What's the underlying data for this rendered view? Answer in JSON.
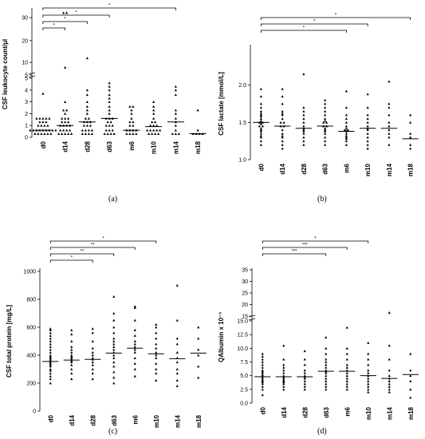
{
  "panels": [
    {
      "id": "a",
      "label": "(a)",
      "chart_data": {
        "type": "scatter",
        "ylabel": "CSF leukocyte count/µl",
        "categories": [
          "d0",
          "d14",
          "d28",
          "d63",
          "m6",
          "m10",
          "m14",
          "m18"
        ],
        "axis": "broken",
        "y_lower_ticks": [
          "0",
          "1",
          "2",
          "3",
          "4",
          "5"
        ],
        "y_upper_ticks": [
          "5",
          "10",
          "20",
          "30"
        ],
        "values": [
          [
            0.3,
            0.3,
            0.3,
            0.3,
            0.3,
            0.3,
            0.6,
            0.6,
            0.6,
            0.6,
            0.6,
            0.6,
            0.6,
            0.6,
            0.6,
            1.0,
            1.0,
            1.0,
            1.0,
            1.3,
            1.3,
            1.3,
            1.6,
            1.6,
            1.6,
            1.6,
            1.6,
            3.7
          ],
          [
            0.3,
            0.3,
            0.3,
            0.3,
            0.3,
            0.6,
            0.6,
            0.6,
            0.6,
            1.0,
            1.0,
            1.0,
            1.0,
            1.3,
            1.3,
            1.3,
            1.6,
            1.6,
            1.6,
            2.0,
            2.3,
            2.3,
            3.0,
            8,
            33,
            36
          ],
          [
            0.3,
            0.3,
            0.3,
            0.3,
            0.6,
            0.6,
            0.6,
            0.6,
            1.0,
            1.0,
            1.0,
            1.3,
            1.3,
            1.3,
            1.6,
            1.6,
            2.0,
            2.3,
            2.6,
            3.0,
            3.6,
            4.0,
            12
          ],
          [
            0.3,
            0.3,
            0.3,
            0.3,
            0.6,
            0.6,
            0.6,
            1.0,
            1.0,
            1.0,
            1.3,
            1.3,
            1.6,
            1.6,
            1.6,
            2.0,
            2.3,
            2.6,
            3.0,
            3.3,
            3.6,
            4.0,
            4.3,
            4.6
          ],
          [
            0.3,
            0.3,
            0.3,
            0.3,
            0.6,
            0.6,
            0.6,
            0.6,
            1.0,
            1.0,
            1.3,
            1.3,
            1.6,
            2.0,
            2.3,
            2.6,
            2.6
          ],
          [
            0.3,
            0.3,
            0.3,
            0.3,
            0.6,
            0.6,
            0.6,
            0.6,
            0.6,
            1.0,
            1.0,
            1.0,
            1.3,
            1.3,
            1.6,
            2.0,
            2.3,
            2.6,
            3.0
          ],
          [
            0.3,
            0.3,
            0.3,
            0.6,
            1.0,
            1.3,
            1.6,
            2.0,
            2.3,
            3.6,
            4.0,
            4.3
          ],
          [
            0.3,
            0.3,
            0.3,
            0.3,
            0.6,
            2.3
          ]
        ],
        "medians": [
          0.6,
          1.0,
          1.3,
          1.6,
          0.6,
          0.9,
          1.3,
          0.3
        ],
        "significance": [
          {
            "from": "d0",
            "to": "d14",
            "mark": "*"
          },
          {
            "from": "d0",
            "to": "d28",
            "mark": "*"
          },
          {
            "from": "d0",
            "to": "d63",
            "mark": "*"
          },
          {
            "from": "d0",
            "to": "m14",
            "mark": "*"
          }
        ]
      }
    },
    {
      "id": "b",
      "label": "(b)",
      "chart_data": {
        "type": "scatter",
        "ylabel": "CSF lactate [mmol/L]",
        "categories": [
          "d0",
          "d14",
          "d28",
          "d63",
          "m6",
          "m10",
          "m14",
          "m18"
        ],
        "ylim": [
          1.0,
          2.5
        ],
        "yticks": [
          1.0,
          1.5,
          2.0
        ],
        "values": [
          [
            1.2,
            1.25,
            1.3,
            1.32,
            1.35,
            1.38,
            1.4,
            1.42,
            1.45,
            1.45,
            1.48,
            1.5,
            1.5,
            1.52,
            1.55,
            1.58,
            1.6,
            1.62,
            1.65,
            1.7,
            1.75,
            1.85,
            1.95
          ],
          [
            1.15,
            1.2,
            1.25,
            1.3,
            1.32,
            1.35,
            1.4,
            1.45,
            1.45,
            1.5,
            1.5,
            1.55,
            1.6,
            1.62,
            1.65,
            1.75,
            1.85,
            1.95
          ],
          [
            1.2,
            1.25,
            1.3,
            1.35,
            1.38,
            1.4,
            1.42,
            1.45,
            1.5,
            1.55,
            1.6,
            1.65,
            1.7,
            2.15
          ],
          [
            1.2,
            1.25,
            1.3,
            1.35,
            1.38,
            1.4,
            1.42,
            1.45,
            1.45,
            1.5,
            1.5,
            1.52,
            1.55,
            1.6,
            1.65,
            1.7,
            1.75,
            1.8
          ],
          [
            1.2,
            1.25,
            1.28,
            1.3,
            1.32,
            1.35,
            1.38,
            1.4,
            1.4,
            1.42,
            1.45,
            1.5,
            1.55,
            1.6,
            1.7,
            1.92
          ],
          [
            1.15,
            1.2,
            1.25,
            1.3,
            1.35,
            1.4,
            1.42,
            1.45,
            1.5,
            1.55,
            1.6,
            1.7,
            1.88
          ],
          [
            1.2,
            1.3,
            1.35,
            1.4,
            1.45,
            1.5,
            1.6,
            1.7,
            1.75,
            2.05
          ],
          [
            1.15,
            1.2,
            1.3,
            1.35,
            1.5,
            1.6
          ]
        ],
        "medians": [
          1.5,
          1.45,
          1.42,
          1.45,
          1.38,
          1.42,
          1.42,
          1.28
        ],
        "significance": [
          {
            "from": "d0",
            "to": "m6",
            "mark": "*"
          },
          {
            "from": "d0",
            "to": "m10",
            "mark": "*"
          },
          {
            "from": "d0",
            "to": "m18",
            "mark": "*"
          }
        ]
      }
    },
    {
      "id": "c",
      "label": "(c)",
      "chart_data": {
        "type": "scatter",
        "ylabel": "CSF total protein [mg/L]",
        "categories": [
          "d0",
          "d14",
          "d28",
          "d63",
          "m6",
          "m10",
          "m14",
          "m18"
        ],
        "ylim": [
          0,
          1000
        ],
        "yticks": [
          0,
          200,
          400,
          600,
          800,
          1000
        ],
        "values": [
          [
            200,
            230,
            250,
            270,
            290,
            300,
            320,
            330,
            340,
            350,
            360,
            370,
            380,
            390,
            400,
            420,
            440,
            460,
            480,
            500,
            520,
            540,
            560,
            580,
            590
          ],
          [
            230,
            270,
            300,
            330,
            350,
            360,
            370,
            380,
            390,
            400,
            420,
            440,
            460,
            500,
            550,
            580
          ],
          [
            230,
            270,
            300,
            330,
            350,
            370,
            380,
            400,
            420,
            450,
            500,
            560,
            590
          ],
          [
            200,
            240,
            280,
            320,
            350,
            380,
            400,
            420,
            440,
            460,
            480,
            500,
            520,
            560,
            600,
            650,
            700,
            820
          ],
          [
            250,
            300,
            340,
            380,
            420,
            440,
            460,
            480,
            500,
            540,
            580,
            650,
            740,
            750
          ],
          [
            220,
            270,
            300,
            340,
            380,
            400,
            420,
            450,
            480,
            520,
            560,
            600,
            620
          ],
          [
            180,
            220,
            270,
            300,
            350,
            380,
            420,
            480,
            520,
            650,
            900
          ],
          [
            240,
            320,
            400,
            440,
            520,
            600
          ]
        ],
        "medians": [
          355,
          365,
          370,
          415,
          450,
          410,
          375,
          415
        ],
        "significance": [
          {
            "from": "d0",
            "to": "d28",
            "mark": "*"
          },
          {
            "from": "d0",
            "to": "d63",
            "mark": "**"
          },
          {
            "from": "d0",
            "to": "m6",
            "mark": "**"
          },
          {
            "from": "d0",
            "to": "m10",
            "mark": "*"
          }
        ]
      }
    },
    {
      "id": "d",
      "label": "(d)",
      "chart_data": {
        "type": "scatter",
        "ylabel": "QAlbumin x 10⁻³",
        "categories": [
          "d0",
          "d14",
          "d28",
          "d63",
          "m6",
          "m10",
          "m14",
          "m18"
        ],
        "axis": "broken",
        "y_lower_ticks": [
          "0.0",
          "2.5",
          "5.0",
          "7.5",
          "10.0",
          "12.5",
          "15.0"
        ],
        "y_upper_ticks": [
          "15",
          "20",
          "25",
          "30",
          "35"
        ],
        "values": [
          [
            1.5,
            2.5,
            3.0,
            3.5,
            3.8,
            4.0,
            4.2,
            4.5,
            4.8,
            5.0,
            5.2,
            5.5,
            5.8,
            6.0,
            6.5,
            7.0,
            7.5,
            8.0,
            8.5,
            9.0
          ],
          [
            2.5,
            3.0,
            3.5,
            3.8,
            4.0,
            4.2,
            4.5,
            4.8,
            5.0,
            5.5,
            6.0,
            6.5,
            7.0,
            8.0,
            10.5
          ],
          [
            2.5,
            3.0,
            3.5,
            4.0,
            4.5,
            4.8,
            5.0,
            5.5,
            6.0,
            7.0,
            8.0,
            9.5
          ],
          [
            2.5,
            3.0,
            3.5,
            4.0,
            4.5,
            5.0,
            5.5,
            5.8,
            6.0,
            6.5,
            7.0,
            7.5,
            8.0,
            9.0,
            10.0,
            12.0
          ],
          [
            2.5,
            3.0,
            3.5,
            4.0,
            4.5,
            5.0,
            5.5,
            6.0,
            6.5,
            7.0,
            8.0,
            9.0,
            10.0,
            13.8
          ],
          [
            2.0,
            2.5,
            3.0,
            3.5,
            4.0,
            4.5,
            5.0,
            5.5,
            6.0,
            7.0,
            8.0,
            9.0,
            11.0
          ],
          [
            2.0,
            2.5,
            3.0,
            3.5,
            4.0,
            4.5,
            5.0,
            6.0,
            8.0,
            10.5,
            16.5
          ],
          [
            1.0,
            2.5,
            4.0,
            5.0,
            6.0,
            9.0
          ]
        ],
        "medians": [
          4.8,
          4.8,
          4.8,
          5.8,
          5.8,
          5.0,
          4.5,
          5.2
        ],
        "significance": [
          {
            "from": "d0",
            "to": "d63",
            "mark": "***"
          },
          {
            "from": "d0",
            "to": "m6",
            "mark": "***"
          },
          {
            "from": "d0",
            "to": "m10",
            "mark": "*"
          }
        ]
      }
    }
  ]
}
